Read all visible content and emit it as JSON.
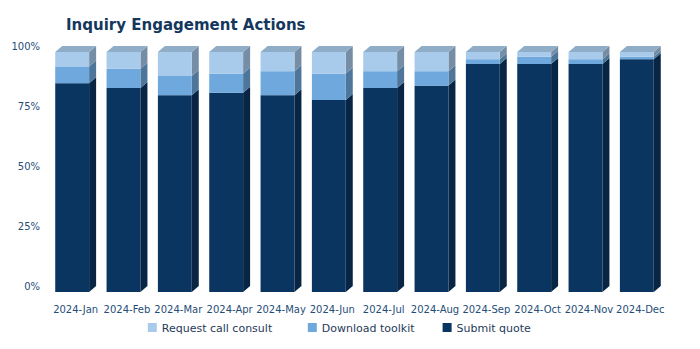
{
  "chart_data": {
    "type": "bar",
    "title": "Inquiry Engagement Actions",
    "categories": [
      "2024-Jan",
      "2024-Feb",
      "2024-Mar",
      "2024-Apr",
      "2024-May",
      "2024-Jun",
      "2024-Jul",
      "2024-Aug",
      "2024-Sep",
      "2024-Oct",
      "2024-Nov",
      "2024-Dec"
    ],
    "series": [
      {
        "name": "Submit quote",
        "color": "#0b3561",
        "values": [
          87,
          85,
          82,
          83,
          82,
          80,
          85,
          86,
          95,
          95,
          95,
          97
        ]
      },
      {
        "name": "Download toolkit",
        "color": "#6ea8dc",
        "values": [
          7,
          8,
          8,
          8,
          10,
          11,
          7,
          6,
          2,
          3,
          2,
          1
        ]
      },
      {
        "name": "Request call consult",
        "color": "#a9cbeb",
        "values": [
          6,
          7,
          10,
          9,
          8,
          9,
          8,
          8,
          3,
          2,
          3,
          2
        ]
      }
    ],
    "stacked": true,
    "grid": false,
    "legend": "bottom",
    "ylim": [
      0,
      100
    ],
    "yticks": [
      {
        "value": 0,
        "label": "0%"
      },
      {
        "value": 25,
        "label": "25%"
      },
      {
        "value": 50,
        "label": "50%"
      },
      {
        "value": 75,
        "label": "75%"
      },
      {
        "value": 100,
        "label": "100%"
      }
    ]
  }
}
